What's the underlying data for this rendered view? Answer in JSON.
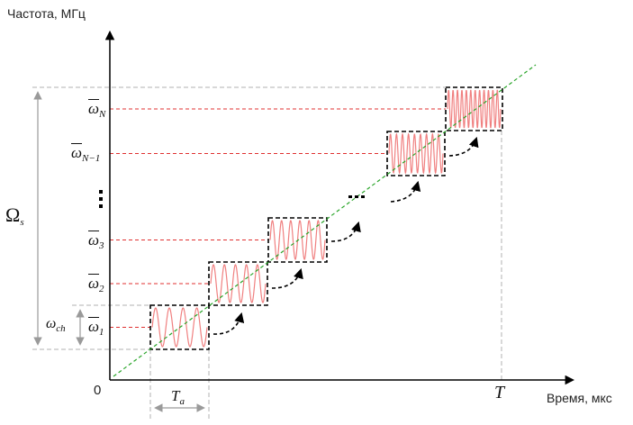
{
  "axes": {
    "y_label": "Частота, МГц",
    "x_label": "Время, мкс",
    "origin": "0",
    "x_end": "T"
  },
  "levels": [
    {
      "symbol": "ω",
      "sub": "1"
    },
    {
      "symbol": "ω",
      "sub": "2"
    },
    {
      "symbol": "ω",
      "sub": "3"
    },
    {
      "symbol": "ω",
      "sub": "N−1"
    },
    {
      "symbol": "ω",
      "sub": "N"
    }
  ],
  "span": {
    "symbol": "Ω",
    "sub": "s"
  },
  "channel": {
    "symbol": "ω",
    "sub": "ch"
  },
  "duration": {
    "symbol": "T",
    "sub": "a"
  },
  "colors": {
    "axis": "#000000",
    "level_line": "#e03030",
    "sine": "#f08080",
    "diagonal": "#2aa52a",
    "guide": "#b0b0b0",
    "box": "#000000"
  }
}
